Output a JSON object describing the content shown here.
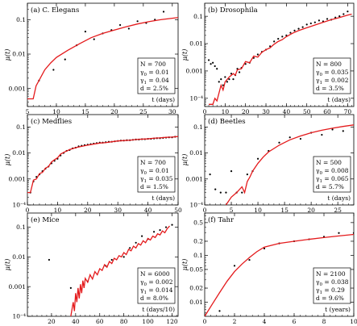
{
  "chart_data": [
    {
      "type": "line",
      "label": "(a) C. Elegans",
      "xlabel": "t (days)",
      "ylabel": "μ(t)",
      "log_y": true,
      "xlim": [
        5,
        31
      ],
      "ylim": [
        0.0003,
        0.3
      ],
      "xticks": [
        5,
        10,
        15,
        20,
        25,
        30
      ],
      "yticks": [
        {
          "v": 0.001,
          "t": "0.001"
        },
        {
          "v": 0.01,
          "t": "0.01"
        },
        {
          "v": 0.1,
          "t": "0.1"
        }
      ],
      "legend_pos": "right",
      "params": [
        "N = 700",
        "γ0 = 0.01",
        "γ1 = 0.04",
        "d = 2.5%"
      ],
      "series": [
        {
          "kind": "points",
          "x": [
            7,
            9.5,
            11.5,
            13.5,
            15,
            16.5,
            18,
            19.5,
            21,
            22.5,
            24,
            25.5,
            27,
            28.5
          ],
          "y": [
            0.0017,
            0.0035,
            0.007,
            0.018,
            0.045,
            0.027,
            0.04,
            0.05,
            0.07,
            0.055,
            0.09,
            0.08,
            0.1,
            0.17
          ]
        },
        {
          "kind": "line",
          "x": [
            5,
            6,
            6.5,
            7,
            8,
            9,
            10,
            12,
            14,
            16,
            18,
            20,
            22,
            24,
            26,
            28,
            30,
            31
          ],
          "y": [
            0.0005,
            0.0005,
            0.0012,
            0.0017,
            0.0035,
            0.0055,
            0.008,
            0.013,
            0.02,
            0.03,
            0.04,
            0.05,
            0.062,
            0.075,
            0.088,
            0.1,
            0.11,
            0.115
          ]
        }
      ]
    },
    {
      "type": "line",
      "label": "(b) Drosophila",
      "xlabel": "t (days)",
      "ylabel": "μ(t)",
      "log_y": true,
      "xlim": [
        0,
        73
      ],
      "ylim": [
        5e-05,
        0.3
      ],
      "xticks": [
        0,
        10,
        20,
        30,
        40,
        50,
        60,
        70
      ],
      "yticks": [
        {
          "v": 0.0001,
          "t": "10⁻⁴"
        },
        {
          "v": 0.001,
          "t": "0.001"
        },
        {
          "v": 0.01,
          "t": "0.01"
        },
        {
          "v": 0.1,
          "t": "0.1"
        }
      ],
      "legend_pos": "right",
      "params": [
        "N = 800",
        "γ0 = 0.035",
        "γ1 = 0.002",
        "d = 3.5%"
      ],
      "series": [
        {
          "kind": "points",
          "x": [
            2,
            3,
            4,
            5,
            6,
            7,
            8,
            9,
            10,
            11,
            12,
            13,
            14,
            15,
            16,
            17,
            18,
            20,
            22,
            24,
            26,
            28,
            30,
            32,
            34,
            36,
            38,
            40,
            42,
            44,
            46,
            48,
            50,
            52,
            54,
            56,
            58,
            60,
            62,
            64,
            66,
            68,
            70
          ],
          "y": [
            0.0025,
            0.0018,
            0.002,
            0.0015,
            0.0012,
            0.0004,
            0.0005,
            0.0003,
            0.0006,
            0.0004,
            0.0005,
            0.0008,
            0.0005,
            0.0007,
            0.0012,
            0.0009,
            0.0013,
            0.0018,
            0.002,
            0.003,
            0.004,
            0.005,
            0.006,
            0.008,
            0.012,
            0.015,
            0.018,
            0.02,
            0.025,
            0.03,
            0.035,
            0.04,
            0.05,
            0.055,
            0.06,
            0.07,
            0.065,
            0.08,
            0.075,
            0.09,
            0.1,
            0.12,
            0.15
          ]
        },
        {
          "kind": "line",
          "x": [
            2,
            4,
            5,
            6,
            8,
            9,
            10,
            12,
            14,
            15,
            16,
            18,
            20,
            22,
            24,
            26,
            28,
            30,
            32,
            34,
            36,
            38,
            40,
            43,
            46,
            50,
            54,
            58,
            62,
            66,
            70,
            72
          ],
          "y": [
            6e-05,
            6e-05,
            0.0001,
            8e-05,
            0.0003,
            0.0002,
            0.0004,
            0.0006,
            0.0008,
            0.0007,
            0.0011,
            0.0012,
            0.0022,
            0.002,
            0.0035,
            0.0032,
            0.0048,
            0.006,
            0.007,
            0.0095,
            0.012,
            0.014,
            0.018,
            0.024,
            0.03,
            0.038,
            0.048,
            0.06,
            0.075,
            0.09,
            0.11,
            0.12
          ]
        }
      ]
    },
    {
      "type": "line",
      "label": "(c) Medflies",
      "xlabel": "t (days)",
      "ylabel": "μ(t)",
      "log_y": true,
      "xlim": [
        0,
        50
      ],
      "ylim": [
        0.0001,
        0.3
      ],
      "xticks": [
        0,
        10,
        20,
        30,
        40,
        50
      ],
      "yticks": [
        {
          "v": 0.0001,
          "t": "10⁻⁴"
        },
        {
          "v": 0.001,
          "t": "0.001"
        },
        {
          "v": 0.01,
          "t": "0.01"
        },
        {
          "v": 0.1,
          "t": "0.1"
        }
      ],
      "legend_pos": "right",
      "params": [
        "N = 700",
        "γ0 = 0.01",
        "γ1 = 0.035",
        "d = 1.5%"
      ],
      "series": [
        {
          "kind": "points",
          "x": [
            1,
            2,
            3,
            4,
            5,
            6,
            7,
            8,
            9,
            10,
            11,
            12,
            13,
            14,
            15,
            16,
            17,
            18,
            19,
            20,
            21,
            22,
            23,
            24,
            25,
            26,
            27,
            28,
            29,
            30,
            31,
            32,
            33,
            34,
            35,
            36,
            37,
            38,
            39,
            40,
            41,
            42,
            43,
            44,
            45,
            46,
            47,
            48,
            49
          ],
          "y": [
            0.0003,
            0.0008,
            0.0012,
            0.0015,
            0.002,
            0.0025,
            0.003,
            0.004,
            0.005,
            0.006,
            0.008,
            0.01,
            0.012,
            0.013,
            0.015,
            0.016,
            0.018,
            0.019,
            0.02,
            0.021,
            0.022,
            0.023,
            0.024,
            0.025,
            0.025,
            0.026,
            0.027,
            0.027,
            0.028,
            0.029,
            0.03,
            0.03,
            0.031,
            0.031,
            0.032,
            0.033,
            0.033,
            0.034,
            0.034,
            0.035,
            0.035,
            0.036,
            0.037,
            0.037,
            0.038,
            0.039,
            0.04,
            0.04,
            0.042
          ]
        },
        {
          "kind": "line",
          "x": [
            0,
            1,
            2,
            3,
            4,
            5,
            6,
            7,
            8,
            9,
            10,
            11,
            12,
            14,
            16,
            18,
            20,
            22,
            24,
            26,
            28,
            30,
            32,
            34,
            36,
            38,
            40,
            42,
            44,
            46,
            48,
            50
          ],
          "y": [
            0.0003,
            0.0003,
            0.0009,
            0.001,
            0.0016,
            0.0018,
            0.0026,
            0.003,
            0.0045,
            0.0055,
            0.0065,
            0.009,
            0.0105,
            0.0135,
            0.016,
            0.018,
            0.02,
            0.022,
            0.024,
            0.025,
            0.027,
            0.029,
            0.03,
            0.031,
            0.033,
            0.034,
            0.035,
            0.037,
            0.038,
            0.04,
            0.041,
            0.043
          ]
        }
      ]
    },
    {
      "type": "line",
      "label": "(d) Beetles",
      "xlabel": "t (days)",
      "ylabel": "μ(t)",
      "log_y": true,
      "xlim": [
        0,
        28
      ],
      "ylim": [
        0.0001,
        0.3
      ],
      "xticks": [
        0,
        5,
        10,
        15,
        20,
        25
      ],
      "yticks": [
        {
          "v": 0.0001,
          "t": "10⁻⁴"
        },
        {
          "v": 0.001,
          "t": "0.001"
        },
        {
          "v": 0.01,
          "t": "0.01"
        },
        {
          "v": 0.1,
          "t": "0.1"
        }
      ],
      "legend_pos": "right",
      "params": [
        "N = 500",
        "γ0 = 0.008",
        "γ1 = 0.065",
        "d = 5.7%"
      ],
      "series": [
        {
          "kind": "points",
          "x": [
            1,
            2,
            3,
            4,
            5,
            6,
            7,
            8,
            9,
            10,
            12,
            14,
            16,
            18,
            20,
            22,
            24,
            26
          ],
          "y": [
            0.0015,
            0.0004,
            0.0003,
            0.0003,
            0.002,
            0.0003,
            0.0003,
            0.0015,
            0.002,
            0.006,
            0.012,
            0.025,
            0.04,
            0.035,
            0.06,
            0.05,
            0.08,
            0.07
          ]
        },
        {
          "kind": "line",
          "x": [
            4,
            5,
            6,
            7,
            7.5,
            8,
            8.5,
            9,
            10,
            11,
            12,
            14,
            16,
            18,
            20,
            22,
            24,
            26,
            28
          ],
          "y": [
            0.0001,
            0.0002,
            0.0003,
            0.0005,
            0.0003,
            0.0008,
            0.0012,
            0.002,
            0.004,
            0.007,
            0.011,
            0.02,
            0.032,
            0.045,
            0.06,
            0.075,
            0.09,
            0.105,
            0.12
          ]
        }
      ]
    },
    {
      "type": "line",
      "label": "(e) Mice",
      "xlabel": "t (days/10)",
      "ylabel": "μ(t)",
      "log_y": true,
      "xlim": [
        0,
        125
      ],
      "ylim": [
        0.0001,
        0.3
      ],
      "xticks": [
        20,
        40,
        60,
        80,
        100,
        120
      ],
      "yticks": [
        {
          "v": 0.0001,
          "t": "10⁻⁴"
        },
        {
          "v": 0.001,
          "t": "0.001"
        },
        {
          "v": 0.01,
          "t": "0.01"
        },
        {
          "v": 0.1,
          "t": "0.1"
        }
      ],
      "legend_pos": "right",
      "params": [
        "N = 6000",
        "γ0 = 0.002",
        "γ1 = 0.014",
        "d = 8.0%"
      ],
      "series": [
        {
          "kind": "points",
          "x": [
            18,
            36,
            50,
            65,
            70,
            80,
            85,
            90,
            95,
            100,
            105,
            110,
            115,
            120
          ],
          "y": [
            0.008,
            0.0009,
            0.0015,
            0.005,
            0.008,
            0.01,
            0.02,
            0.03,
            0.05,
            0.04,
            0.07,
            0.08,
            0.1,
            0.12
          ]
        },
        {
          "kind": "line",
          "x": [
            36,
            38,
            39,
            40,
            41,
            42,
            43,
            44,
            45,
            46,
            47,
            48,
            50,
            52,
            54,
            56,
            58,
            60,
            62,
            64,
            66,
            68,
            70,
            72,
            74,
            76,
            78,
            80,
            82,
            84,
            86,
            88,
            90,
            92,
            94,
            96,
            98,
            100,
            102,
            104,
            106,
            108,
            110,
            112,
            114,
            116,
            118
          ],
          "y": [
            0.0001,
            0.0003,
            0.00015,
            0.0006,
            0.0003,
            0.0009,
            0.0004,
            0.0012,
            0.0006,
            0.0016,
            0.0009,
            0.0019,
            0.0014,
            0.0025,
            0.0018,
            0.0032,
            0.0025,
            0.004,
            0.0035,
            0.0055,
            0.0045,
            0.007,
            0.006,
            0.009,
            0.008,
            0.011,
            0.01,
            0.014,
            0.012,
            0.018,
            0.016,
            0.023,
            0.02,
            0.028,
            0.025,
            0.035,
            0.03,
            0.042,
            0.037,
            0.05,
            0.045,
            0.06,
            0.055,
            0.075,
            0.065,
            0.09,
            0.11
          ]
        }
      ]
    },
    {
      "type": "line",
      "label": "(f) Tahr",
      "xlabel": "t (years)",
      "ylabel": "μ(t)",
      "log_y": true,
      "xlim": [
        0,
        10
      ],
      "ylim": [
        0.005,
        0.8
      ],
      "xticks": [
        0,
        2,
        4,
        6,
        8,
        10
      ],
      "yticks": [
        {
          "v": 0.01,
          "t": "0.01"
        },
        {
          "v": 0.02,
          "t": "0.02"
        },
        {
          "v": 0.05,
          "t": "0.05"
        },
        {
          "v": 0.1,
          "t": "0.1"
        },
        {
          "v": 0.2,
          "t": "0.2"
        },
        {
          "v": 0.5,
          "t": "0.5"
        }
      ],
      "legend_pos": "right",
      "params": [
        "N = 2100",
        "γ0 = 0.038",
        "γ1 = 0.29",
        "d = 9.6%"
      ],
      "series": [
        {
          "kind": "points",
          "x": [
            1,
            2,
            3,
            4,
            5,
            6,
            7,
            8,
            9,
            10
          ],
          "y": [
            0.0065,
            0.06,
            0.08,
            0.14,
            0.18,
            0.2,
            0.22,
            0.25,
            0.3,
            0.3
          ]
        },
        {
          "kind": "line",
          "x": [
            0,
            0.5,
            1,
            1.5,
            2,
            2.5,
            3,
            3.5,
            4,
            5,
            6,
            7,
            8,
            9,
            10
          ],
          "y": [
            0.005,
            0.009,
            0.016,
            0.028,
            0.045,
            0.065,
            0.09,
            0.12,
            0.15,
            0.18,
            0.2,
            0.22,
            0.24,
            0.26,
            0.28
          ]
        }
      ]
    }
  ]
}
